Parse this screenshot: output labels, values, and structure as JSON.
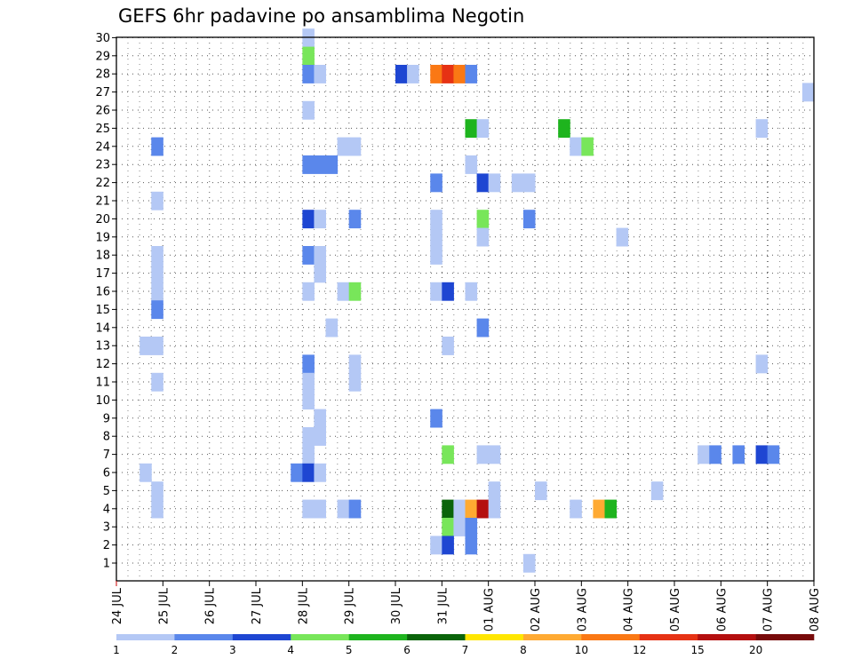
{
  "chart_data": {
    "type": "heatmap",
    "title": "GEFS 6hr padavine po ansamblima Negotin",
    "y_axis": {
      "label": "",
      "min": 1,
      "max": 30,
      "ticks": [
        1,
        2,
        3,
        4,
        5,
        6,
        7,
        8,
        9,
        10,
        11,
        12,
        13,
        14,
        15,
        16,
        17,
        18,
        19,
        20,
        21,
        22,
        23,
        24,
        25,
        26,
        27,
        28,
        29,
        30
      ]
    },
    "x_axis": {
      "label": "",
      "tick_labels": [
        "24 JUL",
        "25 JUL",
        "26 JUL",
        "27 JUL",
        "28 JUL",
        "29 JUL",
        "30 JUL",
        "31 JUL",
        "01 AUG",
        "02 AUG",
        "03 AUG",
        "04 AUG",
        "05 AUG",
        "06 AUG",
        "07 AUG",
        "08 AUG"
      ],
      "range_days": [
        0,
        15
      ]
    },
    "grid": true,
    "colorbar": {
      "levels": [
        "1",
        "2",
        "3",
        "4",
        "5",
        "6",
        "7",
        "8",
        "10",
        "12",
        "15",
        "20"
      ],
      "colors": [
        "#b4c8f5",
        "#5a87eb",
        "#1e46d2",
        "#78e65a",
        "#1eb41e",
        "#0a640a",
        "#ffe600",
        "#ffaa32",
        "#fa7814",
        "#e63214",
        "#b40f0f",
        "#780a0a"
      ]
    },
    "cells": [
      {
        "t": 4.0,
        "m": 30,
        "c": 0
      },
      {
        "t": 4.0,
        "m": 29,
        "c": 3
      },
      {
        "t": 4.0,
        "m": 28,
        "c": 1
      },
      {
        "t": 4.25,
        "m": 28,
        "c": 0
      },
      {
        "t": 6.0,
        "m": 28,
        "c": 2
      },
      {
        "t": 6.25,
        "m": 28,
        "c": 0
      },
      {
        "t": 6.75,
        "m": 28,
        "c": 8
      },
      {
        "t": 7.0,
        "m": 28,
        "c": 9
      },
      {
        "t": 7.25,
        "m": 28,
        "c": 8
      },
      {
        "t": 7.5,
        "m": 28,
        "c": 1
      },
      {
        "t": 14.75,
        "m": 27,
        "c": 0
      },
      {
        "t": 4.0,
        "m": 26,
        "c": 0
      },
      {
        "t": 7.5,
        "m": 25,
        "c": 4
      },
      {
        "t": 7.75,
        "m": 25,
        "c": 0
      },
      {
        "t": 9.5,
        "m": 25,
        "c": 4
      },
      {
        "t": 13.75,
        "m": 25,
        "c": 0
      },
      {
        "t": 0.75,
        "m": 24,
        "c": 1
      },
      {
        "t": 4.75,
        "m": 24,
        "c": 0
      },
      {
        "t": 5.0,
        "m": 24,
        "c": 0
      },
      {
        "t": 9.75,
        "m": 24,
        "c": 0
      },
      {
        "t": 10.0,
        "m": 24,
        "c": 3
      },
      {
        "t": 4.0,
        "m": 23,
        "c": 1
      },
      {
        "t": 4.25,
        "m": 23,
        "c": 1
      },
      {
        "t": 4.5,
        "m": 23,
        "c": 1
      },
      {
        "t": 7.5,
        "m": 23,
        "c": 0
      },
      {
        "t": 6.75,
        "m": 22,
        "c": 1
      },
      {
        "t": 7.75,
        "m": 22,
        "c": 2
      },
      {
        "t": 8.0,
        "m": 22,
        "c": 0
      },
      {
        "t": 8.5,
        "m": 22,
        "c": 0
      },
      {
        "t": 8.75,
        "m": 22,
        "c": 0
      },
      {
        "t": 0.75,
        "m": 21,
        "c": 0
      },
      {
        "t": 4.0,
        "m": 20,
        "c": 2
      },
      {
        "t": 4.25,
        "m": 20,
        "c": 0
      },
      {
        "t": 5.0,
        "m": 20,
        "c": 1
      },
      {
        "t": 6.75,
        "m": 20,
        "c": 0
      },
      {
        "t": 7.75,
        "m": 20,
        "c": 3
      },
      {
        "t": 8.75,
        "m": 20,
        "c": 1
      },
      {
        "t": 6.75,
        "m": 19,
        "c": 0
      },
      {
        "t": 7.75,
        "m": 19,
        "c": 0
      },
      {
        "t": 10.75,
        "m": 19,
        "c": 0
      },
      {
        "t": 0.75,
        "m": 18,
        "c": 0
      },
      {
        "t": 4.0,
        "m": 18,
        "c": 1
      },
      {
        "t": 4.25,
        "m": 18,
        "c": 0
      },
      {
        "t": 6.75,
        "m": 18,
        "c": 0
      },
      {
        "t": 0.75,
        "m": 17,
        "c": 0
      },
      {
        "t": 4.25,
        "m": 17,
        "c": 0
      },
      {
        "t": 0.75,
        "m": 16,
        "c": 0
      },
      {
        "t": 4.0,
        "m": 16,
        "c": 0
      },
      {
        "t": 4.75,
        "m": 16,
        "c": 0
      },
      {
        "t": 5.0,
        "m": 16,
        "c": 3
      },
      {
        "t": 6.75,
        "m": 16,
        "c": 0
      },
      {
        "t": 7.0,
        "m": 16,
        "c": 2
      },
      {
        "t": 7.5,
        "m": 16,
        "c": 0
      },
      {
        "t": 0.75,
        "m": 15,
        "c": 1
      },
      {
        "t": 7.75,
        "m": 14,
        "c": 1
      },
      {
        "t": 4.5,
        "m": 14,
        "c": 0
      },
      {
        "t": 0.5,
        "m": 13,
        "c": 0
      },
      {
        "t": 0.75,
        "m": 13,
        "c": 0
      },
      {
        "t": 7.0,
        "m": 13,
        "c": 0
      },
      {
        "t": 4.0,
        "m": 12,
        "c": 1
      },
      {
        "t": 5.0,
        "m": 12,
        "c": 0
      },
      {
        "t": 13.75,
        "m": 12,
        "c": 0
      },
      {
        "t": 0.75,
        "m": 11,
        "c": 0
      },
      {
        "t": 4.0,
        "m": 11,
        "c": 0
      },
      {
        "t": 5.0,
        "m": 11,
        "c": 0
      },
      {
        "t": 4.0,
        "m": 10,
        "c": 0
      },
      {
        "t": 4.25,
        "m": 9,
        "c": 0
      },
      {
        "t": 6.75,
        "m": 9,
        "c": 1
      },
      {
        "t": 4.0,
        "m": 8,
        "c": 0
      },
      {
        "t": 4.25,
        "m": 8,
        "c": 0
      },
      {
        "t": 4.0,
        "m": 7,
        "c": 0
      },
      {
        "t": 7.0,
        "m": 7,
        "c": 3
      },
      {
        "t": 7.75,
        "m": 7,
        "c": 0
      },
      {
        "t": 8.0,
        "m": 7,
        "c": 0
      },
      {
        "t": 12.5,
        "m": 7,
        "c": 0
      },
      {
        "t": 12.75,
        "m": 7,
        "c": 1
      },
      {
        "t": 13.25,
        "m": 7,
        "c": 1
      },
      {
        "t": 13.75,
        "m": 7,
        "c": 2
      },
      {
        "t": 14.0,
        "m": 7,
        "c": 1
      },
      {
        "t": 0.5,
        "m": 6,
        "c": 0
      },
      {
        "t": 3.75,
        "m": 6,
        "c": 1
      },
      {
        "t": 4.0,
        "m": 6,
        "c": 2
      },
      {
        "t": 4.25,
        "m": 6,
        "c": 0
      },
      {
        "t": 0.75,
        "m": 5,
        "c": 0
      },
      {
        "t": 8.0,
        "m": 5,
        "c": 0
      },
      {
        "t": 9.0,
        "m": 5,
        "c": 0
      },
      {
        "t": 11.5,
        "m": 5,
        "c": 0
      },
      {
        "t": 0.75,
        "m": 4,
        "c": 0
      },
      {
        "t": 4.0,
        "m": 4,
        "c": 0
      },
      {
        "t": 4.25,
        "m": 4,
        "c": 0
      },
      {
        "t": 4.75,
        "m": 4,
        "c": 0
      },
      {
        "t": 5.0,
        "m": 4,
        "c": 1
      },
      {
        "t": 7.0,
        "m": 4,
        "c": 5
      },
      {
        "t": 7.25,
        "m": 4,
        "c": 0
      },
      {
        "t": 7.5,
        "m": 4,
        "c": 7
      },
      {
        "t": 7.75,
        "m": 4,
        "c": 10
      },
      {
        "t": 8.0,
        "m": 4,
        "c": 0
      },
      {
        "t": 9.75,
        "m": 4,
        "c": 0
      },
      {
        "t": 10.25,
        "m": 4,
        "c": 7
      },
      {
        "t": 10.5,
        "m": 4,
        "c": 4
      },
      {
        "t": 7.0,
        "m": 3,
        "c": 3
      },
      {
        "t": 7.25,
        "m": 3,
        "c": 0
      },
      {
        "t": 7.5,
        "m": 3,
        "c": 1
      },
      {
        "t": 6.75,
        "m": 2,
        "c": 0
      },
      {
        "t": 7.0,
        "m": 2,
        "c": 2
      },
      {
        "t": 7.5,
        "m": 2,
        "c": 1
      },
      {
        "t": 8.75,
        "m": 1,
        "c": 0
      }
    ]
  }
}
